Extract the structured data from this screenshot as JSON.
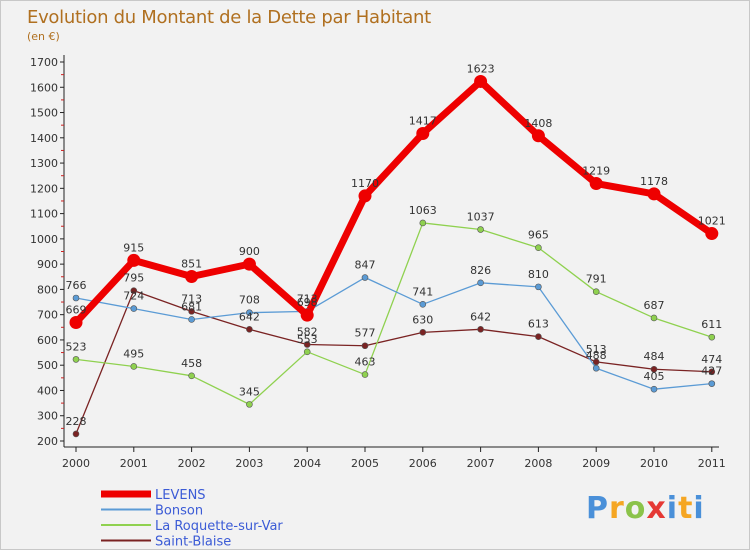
{
  "title": "Evolution du Montant de la Dette par Habitant",
  "unit": "(en €)",
  "logo": {
    "letters": [
      "P",
      "r",
      "o",
      "x",
      "i",
      "t",
      "i"
    ]
  },
  "chart_data": {
    "type": "line",
    "ylim": [
      200,
      1700
    ],
    "y_ticks": [
      200,
      300,
      400,
      500,
      600,
      700,
      800,
      900,
      1000,
      1100,
      1200,
      1300,
      1400,
      1500,
      1600,
      1700
    ],
    "categories": [
      "2000",
      "2001",
      "2002",
      "2003",
      "2004",
      "2005",
      "2006",
      "2007",
      "2008",
      "2009",
      "2010",
      "2011"
    ],
    "legend_position": "bottom-left",
    "grid": false,
    "series": [
      {
        "name": "LEVENS",
        "color": "#ee0000",
        "width": 7,
        "marker": 6.5,
        "values": [
          669,
          915,
          851,
          900,
          698,
          1170,
          1417,
          1623,
          1408,
          1219,
          1178,
          1021
        ],
        "labels": [
          "669",
          "915",
          "851",
          "900",
          "698",
          "1170",
          "1417",
          "1623",
          "1408",
          "1219",
          "1178",
          "1021"
        ]
      },
      {
        "name": "Bonson",
        "color": "#5b9bd5",
        "width": 1.3,
        "marker": 3,
        "values": [
          766,
          724,
          681,
          708,
          713,
          847,
          741,
          826,
          810,
          488,
          405,
          427
        ],
        "labels": [
          "766",
          "724",
          "681",
          "708",
          "713",
          "847",
          "741",
          "826",
          "810",
          "488",
          "405",
          "427"
        ]
      },
      {
        "name": "La Roquette-sur-Var",
        "color": "#8fd14f",
        "width": 1.3,
        "marker": 3,
        "values": [
          523,
          495,
          458,
          345,
          553,
          463,
          1063,
          1037,
          965,
          791,
          687,
          611
        ],
        "labels": [
          "523",
          "495",
          "458",
          "345",
          "553",
          "463",
          "1063",
          "1037",
          "965",
          "791",
          "687",
          "611"
        ]
      },
      {
        "name": "Saint-Blaise",
        "color": "#7a2323",
        "width": 1.3,
        "marker": 3,
        "values": [
          228,
          795,
          713,
          642,
          582,
          577,
          630,
          642,
          613,
          513,
          484,
          474
        ],
        "labels": [
          "228",
          "795",
          "713",
          "642",
          "582",
          "577",
          "630",
          "642",
          "613",
          "513",
          "484",
          "474"
        ]
      }
    ]
  }
}
